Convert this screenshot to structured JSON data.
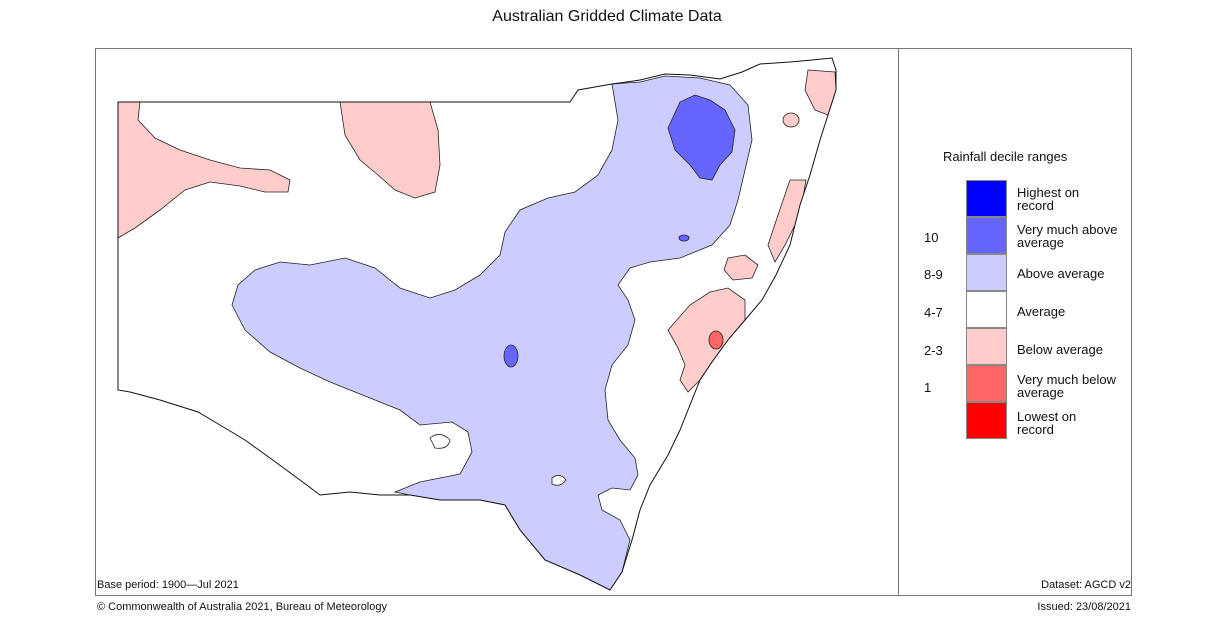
{
  "title": "Australian Gridded Climate Data",
  "legend": {
    "title": "Rainfall decile ranges",
    "items": [
      {
        "label": "Highest on record",
        "color": "#0000ff"
      },
      {
        "label": "Very much above average",
        "color": "#6666ff"
      },
      {
        "label": "Above average",
        "color": "#ccccff"
      },
      {
        "label": "Average",
        "color": "#ffffff"
      },
      {
        "label": "Below average",
        "color": "#ffcccc"
      },
      {
        "label": "Very much below average",
        "color": "#ff6666"
      },
      {
        "label": "Lowest on record",
        "color": "#ff0000"
      }
    ],
    "ranges": [
      "10",
      "8-9",
      "4-7",
      "2-3",
      "1"
    ]
  },
  "footer": {
    "base_period": "Base period: 1900—Jul 2021",
    "dataset": "Dataset: AGCD v2",
    "copyright": "© Commonwealth of Australia 2021, Bureau of Meteorology",
    "issued": "Issued: 23/08/2021"
  }
}
